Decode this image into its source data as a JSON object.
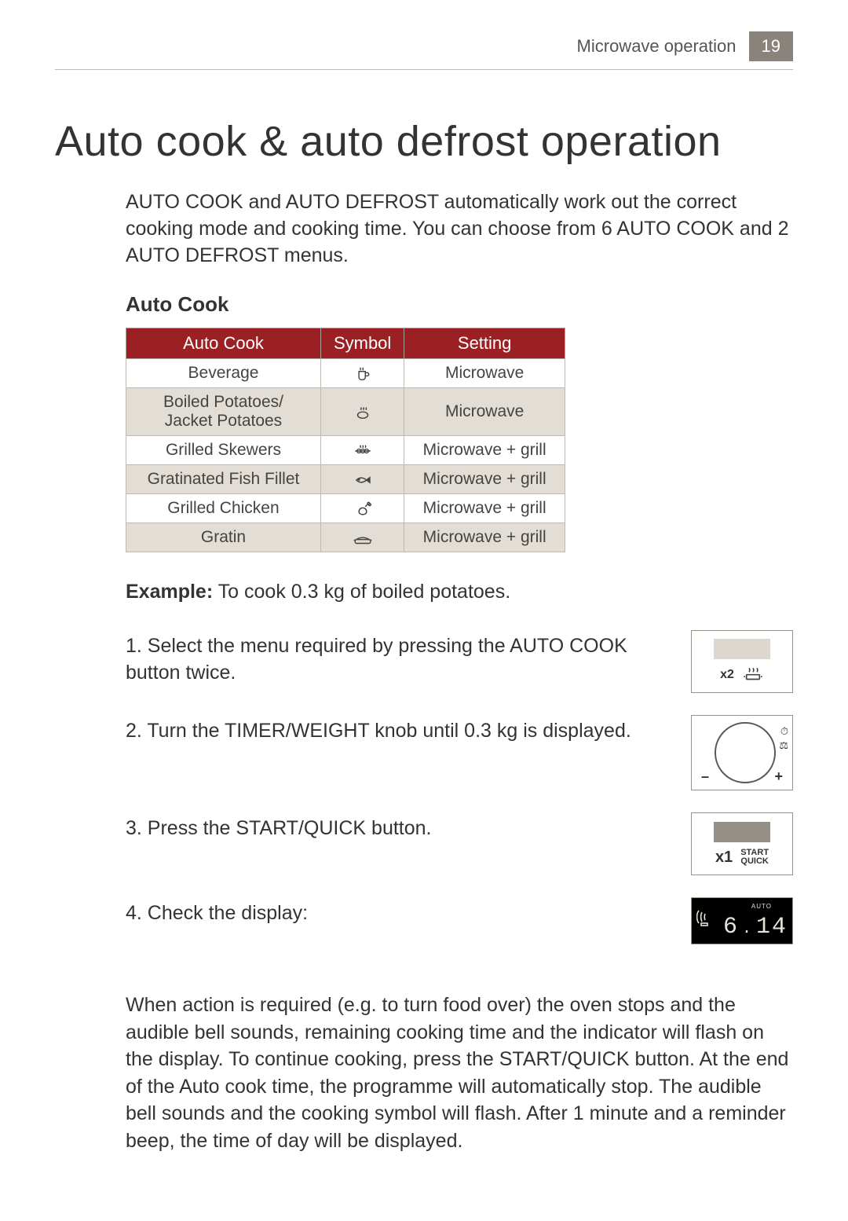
{
  "header": {
    "section": "Microwave operation",
    "page_number": "19"
  },
  "title": "Auto cook & auto defrost operation",
  "intro": "AUTO COOK and AUTO DEFROST automatically work out the correct cooking mode and cooking time. You can choose from 6 AUTO COOK and 2 AUTO DEFROST menus.",
  "autocook": {
    "heading": "Auto Cook",
    "columns": [
      "Auto Cook",
      "Symbol",
      "Setting"
    ],
    "rows": [
      {
        "name": "Beverage",
        "icon": "cup",
        "setting": "Microwave",
        "alt": false
      },
      {
        "name": "Boiled Potatoes/\nJacket Potatoes",
        "icon": "potato",
        "setting": "Microwave",
        "alt": true
      },
      {
        "name": "Grilled Skewers",
        "icon": "skewer",
        "setting": "Microwave + grill",
        "alt": false
      },
      {
        "name": "Gratinated Fish Fillet",
        "icon": "fish",
        "setting": "Microwave + grill",
        "alt": true
      },
      {
        "name": "Grilled Chicken",
        "icon": "chicken",
        "setting": "Microwave + grill",
        "alt": false
      },
      {
        "name": "Gratin",
        "icon": "gratin",
        "setting": "Microwave + grill",
        "alt": true
      }
    ]
  },
  "example": {
    "label": "Example:",
    "text": "To cook 0.3 kg of boiled potatoes."
  },
  "steps": [
    {
      "text": "1. Select the menu required by pressing the AUTO COOK button twice.",
      "figure": {
        "type": "button-press",
        "times": "x2",
        "icon": "steam"
      }
    },
    {
      "text": "2. Turn the TIMER/WEIGHT knob until 0.3 kg is displayed.",
      "figure": {
        "type": "knob",
        "minus": "–",
        "plus": "+",
        "time_icon": "⏱",
        "weight_icon": "⚖"
      }
    },
    {
      "text": "3. Press the START/QUICK button.",
      "figure": {
        "type": "start",
        "times": "x1",
        "line1": "START",
        "line2": "QUICK"
      }
    },
    {
      "text": "4. Check the display:",
      "figure": {
        "type": "lcd",
        "auto_label": "AUTO",
        "digits_a": "6",
        "digits_b": "14"
      }
    }
  ],
  "note": "When action is required (e.g. to turn food over) the oven stops and the audible bell sounds, remaining cooking time and the indicator will flash on the display. To continue cooking, press the START/QUICK button. At the end of the Auto cook time, the programme will automatically stop. The audible bell sounds and the cooking symbol will flash. After 1 minute and a reminder beep, the time of day will be displayed.",
  "colors": {
    "table_header_bg": "#9b2024",
    "table_header_fg": "#ffffff",
    "alt_row_bg": "#e2ddd5",
    "page_number_bg": "#89837b",
    "lcd_bg": "#000000",
    "lcd_fg": "#e6e2da",
    "text": "#333333",
    "icon_stroke": "#464442"
  }
}
